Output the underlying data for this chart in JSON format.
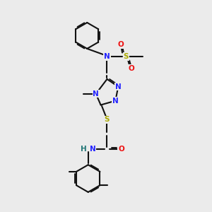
{
  "bg_color": "#ebebeb",
  "bond_color": "#111111",
  "bond_lw": 1.5,
  "dbo": 0.04,
  "N_color": "#2222ff",
  "O_color": "#ee1111",
  "S_color": "#aaaa00",
  "H_color": "#227777",
  "xlim": [
    0,
    10
  ],
  "ylim": [
    0,
    10
  ],
  "fs": 7.5
}
